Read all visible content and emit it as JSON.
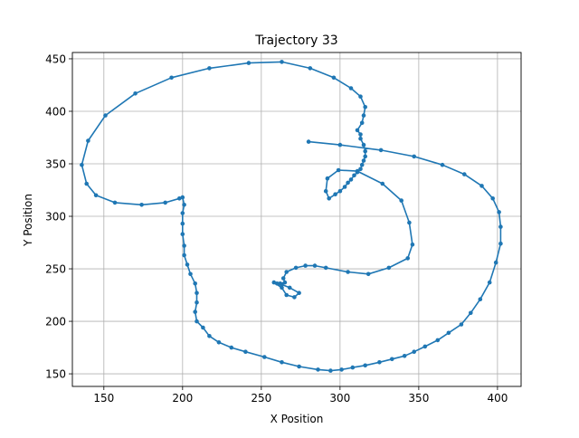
{
  "chart_data": {
    "type": "line",
    "title": "Trajectory 33",
    "xlabel": "X Position",
    "ylabel": "Y Position",
    "xlim": [
      130,
      415
    ],
    "ylim": [
      138,
      456
    ],
    "xticks": [
      150,
      200,
      250,
      300,
      350,
      400
    ],
    "yticks": [
      150,
      200,
      250,
      300,
      350,
      400,
      450
    ],
    "grid": true,
    "marker": "circle",
    "series": [
      {
        "color": "#1f77b4",
        "points": [
          [
            280,
            371
          ],
          [
            300,
            368
          ],
          [
            326,
            363
          ],
          [
            347,
            357
          ],
          [
            365,
            349
          ],
          [
            379,
            340
          ],
          [
            390,
            329
          ],
          [
            397,
            317
          ],
          [
            401,
            304
          ],
          [
            402,
            290
          ],
          [
            402,
            274
          ],
          [
            399,
            256
          ],
          [
            395,
            237
          ],
          [
            389,
            221
          ],
          [
            383,
            208
          ],
          [
            377,
            197
          ],
          [
            369,
            189
          ],
          [
            362,
            182
          ],
          [
            354,
            176
          ],
          [
            347,
            171
          ],
          [
            341,
            167
          ],
          [
            333,
            164
          ],
          [
            325,
            161
          ],
          [
            316,
            158
          ],
          [
            308,
            156
          ],
          [
            301,
            154
          ],
          [
            294,
            153
          ],
          [
            286,
            154
          ],
          [
            274,
            157
          ],
          [
            263,
            161
          ],
          [
            252,
            166
          ],
          [
            240,
            171
          ],
          [
            231,
            175
          ],
          [
            223,
            180
          ],
          [
            217,
            186
          ],
          [
            213,
            194
          ],
          [
            209,
            200
          ],
          [
            208,
            209
          ],
          [
            209,
            218
          ],
          [
            209,
            227
          ],
          [
            208,
            236
          ],
          [
            205,
            245
          ],
          [
            203,
            254
          ],
          [
            201,
            263
          ],
          [
            201,
            272
          ],
          [
            200,
            283
          ],
          [
            200,
            293
          ],
          [
            200,
            303
          ],
          [
            201,
            311
          ],
          [
            200,
            318
          ],
          [
            198,
            317
          ],
          [
            189,
            313
          ],
          [
            174,
            311
          ],
          [
            157,
            313
          ],
          [
            145,
            320
          ],
          [
            139,
            331
          ],
          [
            136,
            349
          ],
          [
            140,
            372
          ],
          [
            151,
            396
          ],
          [
            170,
            417
          ],
          [
            193,
            432
          ],
          [
            217,
            441
          ],
          [
            242,
            446
          ],
          [
            263,
            447
          ],
          [
            281,
            441
          ],
          [
            296,
            432
          ],
          [
            307,
            422
          ],
          [
            313,
            414
          ],
          [
            316,
            404
          ],
          [
            315,
            396
          ],
          [
            314,
            389
          ],
          [
            311,
            382
          ],
          [
            313,
            378
          ],
          [
            313,
            374
          ],
          [
            315,
            368
          ],
          [
            316,
            362
          ],
          [
            316,
            357
          ],
          [
            315,
            353
          ],
          [
            314,
            349
          ],
          [
            313,
            345
          ],
          [
            311,
            342
          ],
          [
            309,
            339
          ],
          [
            307,
            335
          ],
          [
            305,
            332
          ],
          [
            303,
            328
          ],
          [
            300,
            324
          ],
          [
            297,
            321
          ],
          [
            293,
            317
          ],
          [
            291,
            324
          ],
          [
            292,
            336
          ],
          [
            299,
            344
          ],
          [
            311,
            343
          ],
          [
            327,
            331
          ],
          [
            339,
            315
          ],
          [
            344,
            294
          ],
          [
            346,
            273
          ],
          [
            343,
            260
          ],
          [
            331,
            251
          ],
          [
            318,
            245
          ],
          [
            305,
            247
          ],
          [
            291,
            251
          ],
          [
            284,
            253
          ],
          [
            278,
            253
          ],
          [
            272,
            251
          ],
          [
            266,
            247
          ],
          [
            264,
            241
          ],
          [
            265,
            237
          ],
          [
            262,
            236
          ],
          [
            258,
            237
          ],
          [
            263,
            232
          ],
          [
            266,
            225
          ],
          [
            271,
            223
          ],
          [
            274,
            227
          ],
          [
            268,
            232
          ],
          [
            263,
            235
          ],
          [
            260,
            236
          ]
        ]
      }
    ]
  }
}
